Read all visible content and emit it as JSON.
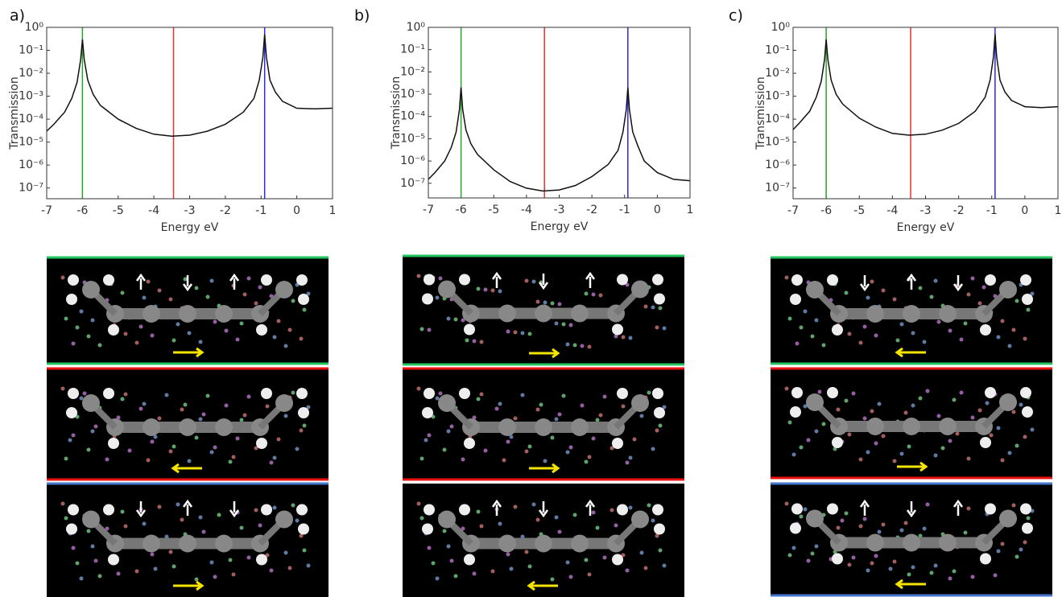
{
  "chart_data": [
    {
      "type": "line",
      "panel": "a)",
      "xlabel": "Energy eV",
      "ylabel": "Transmission",
      "yscale": "log",
      "xlim": [
        -7,
        1
      ],
      "xticks": [
        -7,
        -6,
        -5,
        -4,
        -3,
        -2,
        -1,
        0,
        1
      ],
      "ylim": [
        3.4e-08,
        1
      ],
      "yticks": [
        {
          "value": 1,
          "label": "10⁰"
        },
        {
          "value": 0.1,
          "label": "10⁻¹"
        },
        {
          "value": 0.01,
          "label": "10⁻²"
        },
        {
          "value": 0.001,
          "label": "10⁻³"
        },
        {
          "value": 0.0001,
          "label": "10⁻⁴"
        },
        {
          "value": 1e-05,
          "label": "10⁻⁵"
        },
        {
          "value": 1e-06,
          "label": "10⁻⁶"
        },
        {
          "value": 1e-07,
          "label": "10⁻⁷"
        }
      ],
      "markers": [
        {
          "x": -6,
          "color": "#2ca02c"
        },
        {
          "x": -3.45,
          "color": "#e8322f"
        },
        {
          "x": -0.9,
          "color": "#2a2ae0"
        }
      ],
      "x": [
        -7,
        -6.8,
        -6.5,
        -6.3,
        -6.15,
        -6.05,
        -6,
        -5.95,
        -5.85,
        -5.7,
        -5.5,
        -5,
        -4.5,
        -4,
        -3.5,
        -3,
        -2.5,
        -2,
        -1.5,
        -1.2,
        -1.05,
        -0.95,
        -0.9,
        -0.85,
        -0.75,
        -0.6,
        -0.4,
        0,
        0.5,
        1
      ],
      "series": [
        {
          "color": "#111111",
          "values": [
            3e-05,
            6e-05,
            0.0002,
            0.0008,
            0.004,
            0.04,
            0.3,
            0.04,
            0.005,
            0.0012,
            0.0004,
            0.0001,
            4e-05,
            2.2e-05,
            1.8e-05,
            2e-05,
            3e-05,
            6e-05,
            0.0002,
            0.0008,
            0.005,
            0.05,
            0.5,
            0.05,
            0.005,
            0.0015,
            0.0006,
            0.0003,
            0.00028,
            0.0003
          ]
        }
      ]
    },
    {
      "type": "line",
      "panel": "b)",
      "xlabel": "Energy eV",
      "ylabel": "Transmission",
      "yscale": "log",
      "xlim": [
        -7,
        1
      ],
      "xticks": [
        -7,
        -6,
        -5,
        -4,
        -3,
        -2,
        -1,
        0,
        1
      ],
      "ylim": [
        2.2e-08,
        1
      ],
      "yticks": [
        {
          "value": 1,
          "label": "10⁰"
        },
        {
          "value": 0.1,
          "label": "10⁻¹"
        },
        {
          "value": 0.01,
          "label": "10⁻²"
        },
        {
          "value": 0.001,
          "label": "10⁻³"
        },
        {
          "value": 0.0001,
          "label": "10⁻⁴"
        },
        {
          "value": 1e-05,
          "label": "10⁻⁵"
        },
        {
          "value": 1e-06,
          "label": "10⁻⁶"
        },
        {
          "value": 1e-07,
          "label": "10⁻⁷"
        }
      ],
      "markers": [
        {
          "x": -6,
          "color": "#2ca02c"
        },
        {
          "x": -3.45,
          "color": "#e8322f"
        },
        {
          "x": -0.9,
          "color": "#2a2ae0"
        }
      ],
      "x": [
        -7,
        -6.8,
        -6.5,
        -6.3,
        -6.15,
        -6.05,
        -6,
        -5.95,
        -5.85,
        -5.7,
        -5.5,
        -5,
        -4.5,
        -4,
        -3.5,
        -3,
        -2.5,
        -2,
        -1.5,
        -1.2,
        -1.05,
        -0.95,
        -0.9,
        -0.85,
        -0.75,
        -0.6,
        -0.4,
        0,
        0.5,
        1
      ],
      "series": [
        {
          "color": "#111111",
          "values": [
            1.5e-07,
            3e-07,
            1e-06,
            4e-06,
            2e-05,
            0.0002,
            0.002,
            0.0002,
            2.5e-05,
            6e-06,
            2e-06,
            4e-07,
            1.2e-07,
            6e-08,
            4.5e-08,
            5e-08,
            8e-08,
            2e-07,
            7e-07,
            3e-06,
            2e-05,
            0.0002,
            0.002,
            0.0002,
            2e-05,
            5e-06,
            1e-06,
            3e-07,
            1.5e-07,
            1.3e-07
          ]
        }
      ]
    },
    {
      "type": "line",
      "panel": "c)",
      "xlabel": "Energy eV",
      "ylabel": "Transmission",
      "yscale": "log",
      "xlim": [
        -7,
        1
      ],
      "xticks": [
        -7,
        -6,
        -5,
        -4,
        -3,
        -2,
        -1,
        0,
        1
      ],
      "ylim": [
        3.4e-08,
        1
      ],
      "yticks": [
        {
          "value": 1,
          "label": "10⁰"
        },
        {
          "value": 0.1,
          "label": "10⁻¹"
        },
        {
          "value": 0.01,
          "label": "10⁻²"
        },
        {
          "value": 0.001,
          "label": "10⁻³"
        },
        {
          "value": 0.0001,
          "label": "10⁻⁴"
        },
        {
          "value": 1e-05,
          "label": "10⁻⁵"
        },
        {
          "value": 1e-06,
          "label": "10⁻⁶"
        },
        {
          "value": 1e-07,
          "label": "10⁻⁷"
        }
      ],
      "markers": [
        {
          "x": -6,
          "color": "#2ca02c"
        },
        {
          "x": -3.45,
          "color": "#e8322f"
        },
        {
          "x": -0.9,
          "color": "#2a2ae0"
        }
      ],
      "x": [
        -7,
        -6.8,
        -6.5,
        -6.3,
        -6.15,
        -6.05,
        -6,
        -5.95,
        -5.85,
        -5.7,
        -5.5,
        -5,
        -4.5,
        -4,
        -3.5,
        -3,
        -2.5,
        -2,
        -1.5,
        -1.2,
        -1.05,
        -0.95,
        -0.9,
        -0.85,
        -0.75,
        -0.6,
        -0.4,
        0,
        0.5,
        1
      ],
      "series": [
        {
          "color": "#111111",
          "values": [
            3.5e-05,
            7e-05,
            0.00022,
            0.0009,
            0.0045,
            0.04,
            0.3,
            0.04,
            0.005,
            0.0012,
            0.00045,
            0.00011,
            4.5e-05,
            2.4e-05,
            2e-05,
            2.2e-05,
            3.3e-05,
            6.5e-05,
            0.00022,
            0.0009,
            0.005,
            0.05,
            0.5,
            0.05,
            0.005,
            0.0015,
            0.00065,
            0.00035,
            0.00032,
            0.00035
          ]
        }
      ]
    }
  ]
}
